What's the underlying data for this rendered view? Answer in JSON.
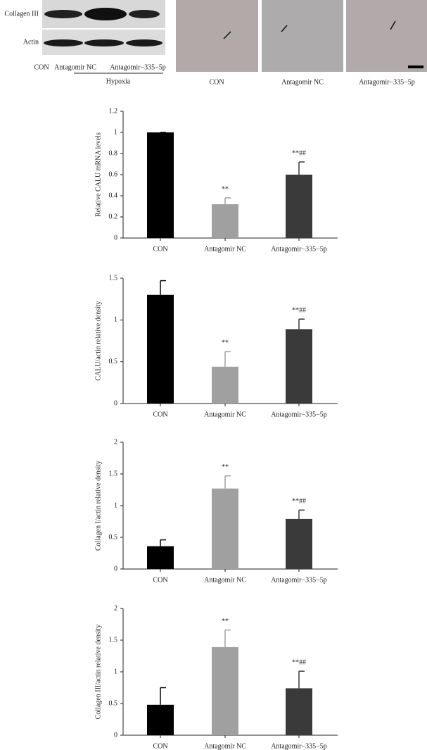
{
  "blot": {
    "row_labels": [
      "Collagen III",
      "Actin"
    ],
    "lane_labels": [
      "CON",
      "Antagomir NC",
      "Antagomir−335−5p"
    ],
    "group_label": "Hypoxia"
  },
  "histology": {
    "panel_labels": [
      "CON",
      "Antagomir NC",
      "Antagomir−335−5p"
    ]
  },
  "chart_data": [
    {
      "type": "bar",
      "y_label": "Relative CALU mRNA levels",
      "categories": [
        "CON",
        "Antagomir NC",
        "Antagomir−335−5p"
      ],
      "values": [
        1.0,
        0.32,
        0.6
      ],
      "errors": [
        0.0,
        0.06,
        0.12
      ],
      "annotations": [
        null,
        "**",
        "**##"
      ],
      "colors": [
        "#000000",
        "#a0a0a0",
        "#3a3a3a"
      ],
      "ylim": [
        0,
        1.2
      ],
      "yticks": [
        0,
        0.2,
        0.4,
        0.6,
        0.8,
        1,
        1.2
      ]
    },
    {
      "type": "bar",
      "y_label": "CALU/actin relative density",
      "categories": [
        "CON",
        "Antagomir NC",
        "Antagomir−335−5p"
      ],
      "values": [
        1.3,
        0.44,
        0.89
      ],
      "errors": [
        0.17,
        0.18,
        0.12
      ],
      "annotations": [
        null,
        "**",
        "**##"
      ],
      "colors": [
        "#000000",
        "#a0a0a0",
        "#3a3a3a"
      ],
      "ylim": [
        0,
        1.5
      ],
      "yticks": [
        0,
        0.5,
        1,
        1.5
      ]
    },
    {
      "type": "bar",
      "y_label": "Collagen I/actin relative density",
      "categories": [
        "CON",
        "Antagomir NC",
        "Antagomir−335−5p"
      ],
      "values": [
        0.36,
        1.27,
        0.79
      ],
      "errors": [
        0.1,
        0.2,
        0.14
      ],
      "annotations": [
        null,
        "**",
        "**##"
      ],
      "colors": [
        "#000000",
        "#a0a0a0",
        "#3a3a3a"
      ],
      "ylim": [
        0,
        2
      ],
      "yticks": [
        0,
        0.5,
        1,
        1.5,
        2
      ]
    },
    {
      "type": "bar",
      "y_label": "Collagen III/actin relative density",
      "categories": [
        "CON",
        "Antagomir NC",
        "Antagomir−335−5p"
      ],
      "values": [
        0.48,
        1.39,
        0.74
      ],
      "errors": [
        0.27,
        0.27,
        0.27
      ],
      "annotations": [
        null,
        "**",
        "**##"
      ],
      "colors": [
        "#000000",
        "#a0a0a0",
        "#3a3a3a"
      ],
      "ylim": [
        0,
        2
      ],
      "yticks": [
        0,
        0.5,
        1,
        1.5,
        2
      ]
    }
  ]
}
